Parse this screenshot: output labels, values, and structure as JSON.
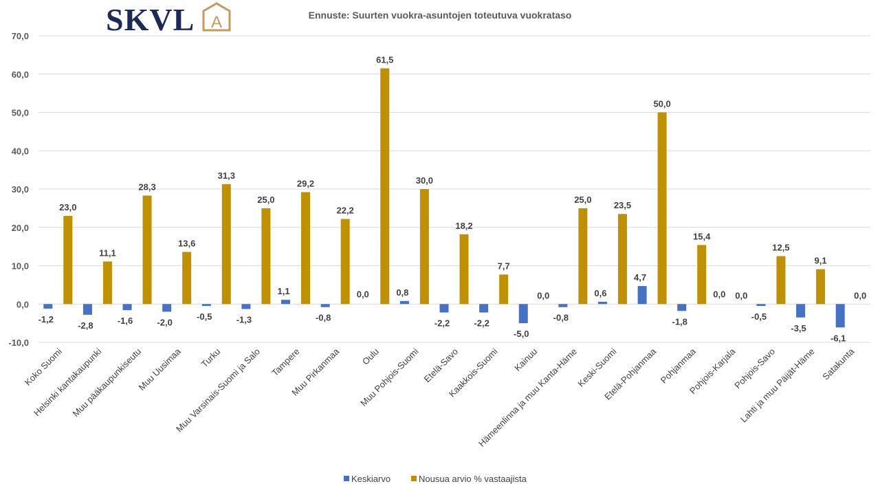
{
  "logo": {
    "text": "SKVL",
    "mark": "A",
    "text_color": "#1b2a57",
    "mark_color": "#c49a5a"
  },
  "chart_data": {
    "type": "bar",
    "title": "Ennuste: Suurten vuokra-asuntojen toteutuva vuokrataso",
    "xlabel": "",
    "ylabel": "",
    "ylim": [
      -10,
      70
    ],
    "yticks": [
      "-10,0",
      "0,0",
      "10,0",
      "20,0",
      "30,0",
      "40,0",
      "50,0",
      "60,0",
      "70,0"
    ],
    "grid": true,
    "legend_position": "bottom",
    "categories": [
      "Koko Suomi",
      "Helsinki kantakaupunki",
      "Muu pääkaupunkiseutu",
      "Muu Uusimaa",
      "Turku",
      "Muu Varsinais-Suomi ja Salo",
      "Tampere",
      "Muu Pirkanmaa",
      "Oulu",
      "Muu Pohjois-Suomi",
      "Etelä-Savo",
      "Kaakkois-Suomi",
      "Kainuu",
      "Hämeenlinna ja muu Kanta-Häme",
      "Keski-Suomi",
      "Etelä-Pohjanmaa",
      "Pohjanmaa",
      "Pohjois-Karjala",
      "Pohjois-Savo",
      "Lahti ja muu Päijät-Häme",
      "Satakunta"
    ],
    "series": [
      {
        "name": "Keskiarvo",
        "color": "#4472c4",
        "values": [
          -1.2,
          -2.8,
          -1.6,
          -2.0,
          -0.5,
          -1.3,
          1.1,
          -0.8,
          0.0,
          0.8,
          -2.2,
          -2.2,
          -5.0,
          -0.8,
          0.6,
          4.7,
          -1.8,
          0.0,
          -0.5,
          -3.5,
          -6.1
        ],
        "labels": [
          "-1,2",
          "-2,8",
          "-1,6",
          "-2,0",
          "-0,5",
          "-1,3",
          "1,1",
          "-0,8",
          "0,0",
          "0,8",
          "-2,2",
          "-2,2",
          "-5,0",
          "-0,8",
          "0,6",
          "4,7",
          "-1,8",
          "0,0",
          "-0,5",
          "-3,5",
          "-6,1"
        ]
      },
      {
        "name": "Nousua arvio % vastaajista",
        "color": "#bf9000",
        "values": [
          23.0,
          11.1,
          28.3,
          13.6,
          31.3,
          25.0,
          29.2,
          22.2,
          61.5,
          30.0,
          18.2,
          7.7,
          0.0,
          25.0,
          23.5,
          50.0,
          15.4,
          0.0,
          12.5,
          9.1,
          0.0
        ],
        "labels": [
          "23,0",
          "11,1",
          "28,3",
          "13,6",
          "31,3",
          "25,0",
          "29,2",
          "22,2",
          "61,5",
          "30,0",
          "18,2",
          "7,7",
          "0,0",
          "25,0",
          "23,5",
          "50,0",
          "15,4",
          "0,0",
          "12,5",
          "9,1",
          "0,0"
        ]
      }
    ]
  }
}
